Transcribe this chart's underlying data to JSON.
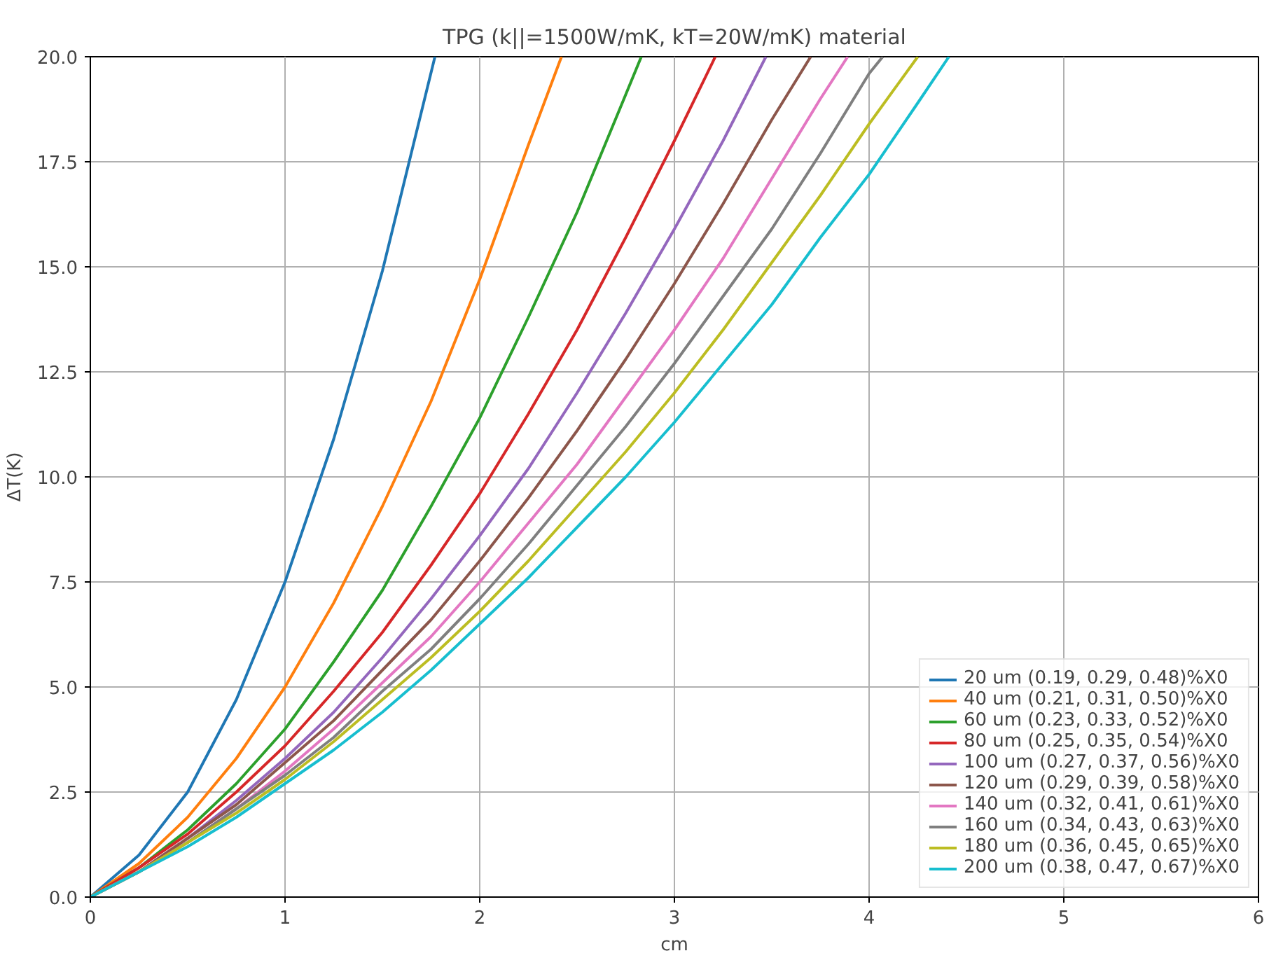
{
  "chart_data": {
    "type": "line",
    "title": "TPG (k||=1500W/mK, kT=20W/mK) material",
    "xlabel": "cm",
    "ylabel": "ΔT(K)",
    "xlim": [
      0,
      6
    ],
    "ylim": [
      0,
      20
    ],
    "xticks": [
      0,
      1,
      2,
      3,
      4,
      5,
      6
    ],
    "yticks": [
      {
        "value": 0,
        "label": "0.0"
      },
      {
        "value": 2.5,
        "label": "2.5"
      },
      {
        "value": 5,
        "label": "5.0"
      },
      {
        "value": 7.5,
        "label": "7.5"
      },
      {
        "value": 10,
        "label": "10.0"
      },
      {
        "value": 12.5,
        "label": "12.5"
      },
      {
        "value": 15,
        "label": "15.0"
      },
      {
        "value": 17.5,
        "label": "17.5"
      },
      {
        "value": 20,
        "label": "20.0"
      }
    ],
    "grid": true,
    "legend": "bottom right",
    "marker": "none",
    "line_style": "solid",
    "series": [
      {
        "name": "20 um (0.19, 0.29, 0.48)%X0",
        "color": "#1f77b4",
        "x": [
          0,
          0.25,
          0.5,
          0.75,
          1,
          1.25,
          1.5,
          1.77
        ],
        "values": [
          0,
          1.0,
          2.5,
          4.7,
          7.5,
          10.9,
          14.9,
          20
        ]
      },
      {
        "name": "40 um (0.21, 0.31, 0.50)%X0",
        "color": "#ff7f0e",
        "x": [
          0,
          0.25,
          0.5,
          0.75,
          1,
          1.25,
          1.5,
          1.75,
          2,
          2.25,
          2.42
        ],
        "values": [
          0,
          0.8,
          1.9,
          3.3,
          5.0,
          7.0,
          9.3,
          11.8,
          14.7,
          17.9,
          20
        ]
      },
      {
        "name": "60 um (0.23, 0.33, 0.52)%X0",
        "color": "#2ca02c",
        "x": [
          0,
          0.25,
          0.5,
          0.75,
          1,
          1.25,
          1.5,
          1.75,
          2,
          2.25,
          2.5,
          2.75,
          2.83
        ],
        "values": [
          0,
          0.7,
          1.6,
          2.7,
          4.0,
          5.6,
          7.3,
          9.3,
          11.4,
          13.8,
          16.3,
          19.1,
          20
        ]
      },
      {
        "name": "80 um (0.25, 0.35, 0.54)%X0",
        "color": "#d62728",
        "x": [
          0,
          0.25,
          0.5,
          0.75,
          1,
          1.25,
          1.5,
          1.75,
          2,
          2.25,
          2.5,
          2.75,
          3,
          3.21
        ],
        "values": [
          0,
          0.7,
          1.5,
          2.5,
          3.6,
          4.9,
          6.3,
          7.9,
          9.6,
          11.5,
          13.5,
          15.7,
          18.0,
          20
        ]
      },
      {
        "name": "100 um (0.27, 0.37, 0.56)%X0",
        "color": "#9467bd",
        "x": [
          0,
          0.25,
          0.5,
          0.75,
          1,
          1.25,
          1.5,
          1.75,
          2,
          2.25,
          2.5,
          2.75,
          3,
          3.25,
          3.47
        ],
        "values": [
          0,
          0.6,
          1.4,
          2.3,
          3.3,
          4.4,
          5.7,
          7.1,
          8.6,
          10.2,
          12.0,
          13.9,
          15.9,
          18.0,
          20
        ]
      },
      {
        "name": "120 um (0.29, 0.39, 0.58)%X0",
        "color": "#8c564b",
        "x": [
          0,
          0.25,
          0.5,
          0.75,
          1,
          1.25,
          1.5,
          1.75,
          2,
          2.25,
          2.5,
          2.75,
          3,
          3.25,
          3.5,
          3.7
        ],
        "values": [
          0,
          0.6,
          1.4,
          2.2,
          3.2,
          4.2,
          5.4,
          6.6,
          8.0,
          9.5,
          11.1,
          12.8,
          14.6,
          16.5,
          18.5,
          20
        ]
      },
      {
        "name": "140 um (0.32, 0.41, 0.61)%X0",
        "color": "#e377c2",
        "x": [
          0,
          0.25,
          0.5,
          0.75,
          1,
          1.25,
          1.5,
          1.75,
          2,
          2.25,
          2.5,
          2.75,
          3,
          3.25,
          3.5,
          3.75,
          3.89
        ],
        "values": [
          0,
          0.6,
          1.3,
          2.1,
          3.0,
          4.0,
          5.1,
          6.2,
          7.5,
          8.9,
          10.3,
          11.9,
          13.5,
          15.2,
          17.1,
          19.0,
          20
        ]
      },
      {
        "name": "160 um (0.34, 0.43, 0.63)%X0",
        "color": "#7f7f7f",
        "x": [
          0,
          0.25,
          0.5,
          0.75,
          1,
          1.25,
          1.5,
          1.75,
          2,
          2.25,
          2.5,
          2.75,
          3,
          3.25,
          3.5,
          3.75,
          4,
          4.07
        ],
        "values": [
          0,
          0.6,
          1.3,
          2.1,
          2.9,
          3.8,
          4.9,
          5.9,
          7.1,
          8.4,
          9.8,
          11.2,
          12.7,
          14.3,
          15.9,
          17.7,
          19.6,
          20
        ]
      },
      {
        "name": "180 um (0.36, 0.45, 0.65)%X0",
        "color": "#bcbd22",
        "x": [
          0,
          0.25,
          0.5,
          0.75,
          1,
          1.25,
          1.5,
          1.75,
          2,
          2.25,
          2.5,
          2.75,
          3,
          3.25,
          3.5,
          3.75,
          4,
          4.25
        ],
        "values": [
          0,
          0.6,
          1.3,
          2.0,
          2.8,
          3.7,
          4.7,
          5.7,
          6.8,
          8.0,
          9.3,
          10.6,
          12.0,
          13.5,
          15.1,
          16.7,
          18.4,
          20
        ]
      },
      {
        "name": "200 um (0.38, 0.47, 0.67)%X0",
        "color": "#17becf",
        "x": [
          0,
          0.25,
          0.5,
          0.75,
          1,
          1.25,
          1.5,
          1.75,
          2,
          2.25,
          2.5,
          2.75,
          3,
          3.25,
          3.5,
          3.75,
          4,
          4.25,
          4.41
        ],
        "values": [
          0,
          0.6,
          1.2,
          1.9,
          2.7,
          3.5,
          4.4,
          5.4,
          6.5,
          7.6,
          8.8,
          10.0,
          11.3,
          12.7,
          14.1,
          15.7,
          17.2,
          18.9,
          20
        ]
      }
    ]
  }
}
